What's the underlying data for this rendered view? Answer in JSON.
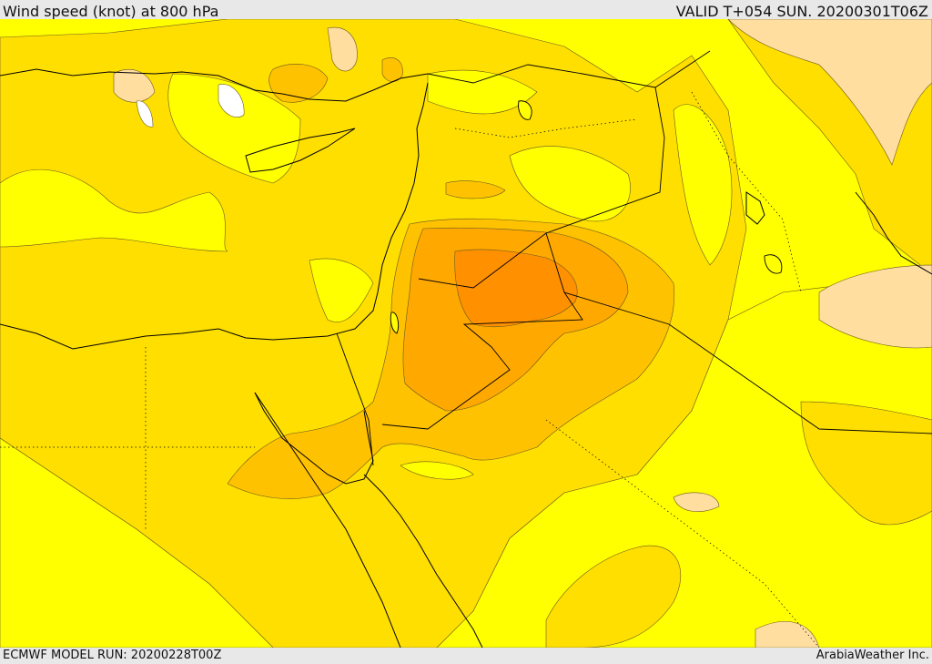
{
  "header": {
    "title": "Wind speed (knot) at 800 hPa",
    "valid_time": "VALID T+054 SUN. 20200301T06Z"
  },
  "footer": {
    "model_run": "ECMWF MODEL RUN: 20200228T00Z",
    "credit": "ArabiaWeather Inc."
  },
  "colors": {
    "band_lowest": "#ffffff",
    "band_1": "#ffff00",
    "band_2": "#ffdf00",
    "band_3": "#ffc200",
    "band_4": "#ffa800",
    "band_5": "#ff9000",
    "band_6": "#ffde9f",
    "coastline": "#000000",
    "contour": "#6a5a20"
  }
}
